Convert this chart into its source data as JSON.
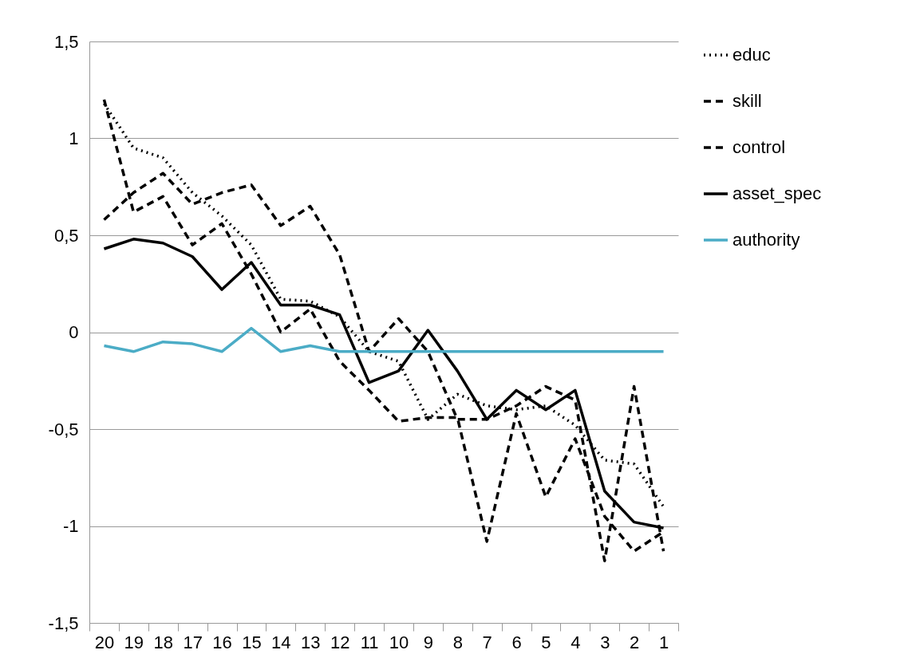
{
  "chart_data": {
    "type": "line",
    "categories": [
      "20",
      "19",
      "18",
      "17",
      "16",
      "15",
      "14",
      "13",
      "12",
      "11",
      "10",
      "9",
      "8",
      "7",
      "6",
      "5",
      "4",
      "3",
      "2",
      "1"
    ],
    "series": [
      {
        "name": "educ",
        "color": "#000000",
        "line_style": "dotted",
        "values": [
          1.18,
          0.95,
          0.9,
          0.72,
          0.6,
          0.45,
          0.17,
          0.16,
          0.08,
          -0.1,
          -0.15,
          -0.45,
          -0.32,
          -0.38,
          -0.4,
          -0.38,
          -0.48,
          -0.66,
          -0.68,
          -0.9
        ]
      },
      {
        "name": "skill",
        "color": "#000000",
        "line_style": "dashed",
        "values": [
          1.2,
          0.62,
          0.7,
          0.45,
          0.56,
          0.3,
          0.0,
          0.12,
          -0.15,
          -0.3,
          -0.46,
          -0.44,
          -0.44,
          -1.08,
          -0.42,
          -0.85,
          -0.55,
          -0.95,
          -1.13,
          -1.03
        ]
      },
      {
        "name": "control",
        "color": "#000000",
        "line_style": "dashed",
        "values": [
          0.58,
          0.72,
          0.82,
          0.66,
          0.72,
          0.76,
          0.55,
          0.65,
          0.4,
          -0.1,
          0.07,
          -0.1,
          -0.45,
          -0.45,
          -0.38,
          -0.28,
          -0.35,
          -1.18,
          -0.28,
          -1.13
        ]
      },
      {
        "name": "asset_spec",
        "color": "#000000",
        "line_style": "solid",
        "values": [
          0.43,
          0.48,
          0.46,
          0.39,
          0.22,
          0.36,
          0.14,
          0.14,
          0.09,
          -0.26,
          -0.2,
          0.01,
          -0.2,
          -0.45,
          -0.3,
          -0.4,
          -0.3,
          -0.82,
          -0.98,
          -1.01
        ]
      },
      {
        "name": "authority",
        "color": "#4bacc6",
        "line_style": "solid",
        "values": [
          -0.07,
          -0.1,
          -0.05,
          -0.06,
          -0.1,
          0.02,
          -0.1,
          -0.07,
          -0.1,
          -0.1,
          -0.1,
          -0.1,
          -0.1,
          -0.1,
          -0.1,
          -0.1,
          -0.1,
          -0.1,
          -0.1,
          -0.1
        ]
      }
    ],
    "ylim": [
      -1.5,
      1.5
    ],
    "yticks": [
      {
        "value": -1.5,
        "label": "-1,5"
      },
      -1,
      {
        "value": -0.5,
        "label": "-0,5"
      },
      0,
      {
        "value": 0.5,
        "label": "0,5"
      },
      1,
      {
        "value": 1.5,
        "label": "1,5"
      }
    ],
    "grid": "y",
    "legend": "right"
  }
}
